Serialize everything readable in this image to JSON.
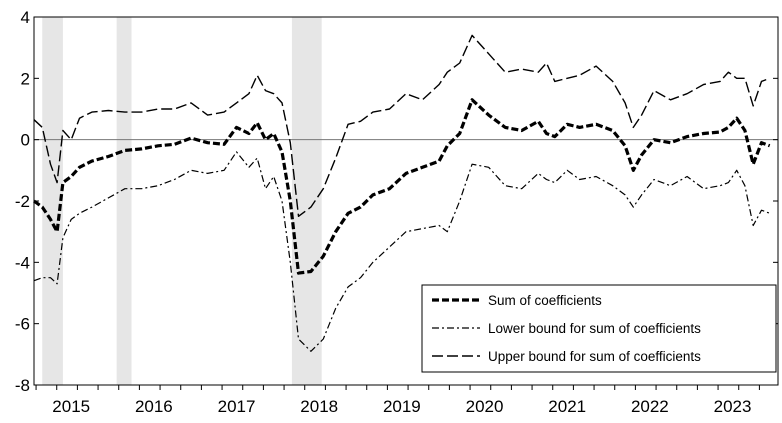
{
  "chart_data": {
    "type": "line",
    "title": "",
    "xlabel": "",
    "ylabel": "",
    "xlim": [
      2014.6,
      2023.6
    ],
    "ylim": [
      -8,
      4
    ],
    "y_ticks": [
      4,
      2,
      0,
      -2,
      -4,
      -6,
      -8
    ],
    "y_tick_labels": [
      "4",
      "2",
      "0",
      "-2",
      "-4",
      "-6",
      "-8"
    ],
    "x_tick_labels": [
      "2015",
      "2016",
      "2017",
      "2018",
      "2019",
      "2020",
      "2021",
      "2022",
      "2023"
    ],
    "x_tick_positions": [
      2015.05,
      2016.05,
      2017.05,
      2018.05,
      2019.05,
      2020.05,
      2021.05,
      2022.05,
      2023.05
    ],
    "grid": false,
    "zero_line": true,
    "legend_position": "bottom-right",
    "shaded_periods": [
      [
        2014.7,
        2014.95
      ],
      [
        2015.6,
        2015.78
      ],
      [
        2017.72,
        2018.08
      ]
    ],
    "series": [
      {
        "name": "Sum of coefficients",
        "style": "bold-dash",
        "points": [
          [
            2014.6,
            -2.0
          ],
          [
            2014.7,
            -2.2
          ],
          [
            2014.8,
            -2.6
          ],
          [
            2014.88,
            -3.0
          ],
          [
            2014.95,
            -1.4
          ],
          [
            2015.05,
            -1.2
          ],
          [
            2015.15,
            -0.9
          ],
          [
            2015.3,
            -0.7
          ],
          [
            2015.5,
            -0.55
          ],
          [
            2015.7,
            -0.35
          ],
          [
            2015.9,
            -0.3
          ],
          [
            2016.1,
            -0.2
          ],
          [
            2016.3,
            -0.15
          ],
          [
            2016.5,
            0.05
          ],
          [
            2016.7,
            -0.1
          ],
          [
            2016.9,
            -0.15
          ],
          [
            2017.05,
            0.4
          ],
          [
            2017.2,
            0.2
          ],
          [
            2017.3,
            0.55
          ],
          [
            2017.4,
            0.0
          ],
          [
            2017.5,
            0.2
          ],
          [
            2017.6,
            -0.4
          ],
          [
            2017.7,
            -2.0
          ],
          [
            2017.8,
            -4.35
          ],
          [
            2017.95,
            -4.3
          ],
          [
            2018.1,
            -3.8
          ],
          [
            2018.25,
            -3.0
          ],
          [
            2018.4,
            -2.4
          ],
          [
            2018.55,
            -2.2
          ],
          [
            2018.7,
            -1.8
          ],
          [
            2018.9,
            -1.6
          ],
          [
            2019.1,
            -1.1
          ],
          [
            2019.3,
            -0.9
          ],
          [
            2019.5,
            -0.7
          ],
          [
            2019.6,
            -0.2
          ],
          [
            2019.75,
            0.2
          ],
          [
            2019.9,
            1.3
          ],
          [
            2020.1,
            0.8
          ],
          [
            2020.3,
            0.4
          ],
          [
            2020.5,
            0.3
          ],
          [
            2020.7,
            0.6
          ],
          [
            2020.8,
            0.2
          ],
          [
            2020.9,
            0.1
          ],
          [
            2021.05,
            0.5
          ],
          [
            2021.2,
            0.4
          ],
          [
            2021.4,
            0.5
          ],
          [
            2021.6,
            0.3
          ],
          [
            2021.75,
            -0.2
          ],
          [
            2021.85,
            -1.0
          ],
          [
            2021.95,
            -0.5
          ],
          [
            2022.1,
            0.0
          ],
          [
            2022.3,
            -0.1
          ],
          [
            2022.5,
            0.1
          ],
          [
            2022.7,
            0.2
          ],
          [
            2022.9,
            0.25
          ],
          [
            2023.0,
            0.4
          ],
          [
            2023.1,
            0.7
          ],
          [
            2023.2,
            0.3
          ],
          [
            2023.3,
            -0.8
          ],
          [
            2023.4,
            -0.1
          ],
          [
            2023.5,
            -0.2
          ]
        ]
      },
      {
        "name": "Lower bound for sum of coefficients",
        "style": "dash-dot",
        "points": [
          [
            2014.6,
            -4.6
          ],
          [
            2014.7,
            -4.5
          ],
          [
            2014.8,
            -4.5
          ],
          [
            2014.88,
            -4.7
          ],
          [
            2014.95,
            -3.2
          ],
          [
            2015.05,
            -2.6
          ],
          [
            2015.15,
            -2.4
          ],
          [
            2015.3,
            -2.2
          ],
          [
            2015.5,
            -1.9
          ],
          [
            2015.7,
            -1.6
          ],
          [
            2015.9,
            -1.6
          ],
          [
            2016.1,
            -1.5
          ],
          [
            2016.3,
            -1.3
          ],
          [
            2016.5,
            -1.0
          ],
          [
            2016.7,
            -1.1
          ],
          [
            2016.9,
            -1.0
          ],
          [
            2017.05,
            -0.4
          ],
          [
            2017.2,
            -0.9
          ],
          [
            2017.3,
            -0.6
          ],
          [
            2017.4,
            -1.6
          ],
          [
            2017.5,
            -1.2
          ],
          [
            2017.6,
            -2.0
          ],
          [
            2017.7,
            -4.0
          ],
          [
            2017.8,
            -6.5
          ],
          [
            2017.95,
            -6.9
          ],
          [
            2018.1,
            -6.5
          ],
          [
            2018.25,
            -5.5
          ],
          [
            2018.4,
            -4.8
          ],
          [
            2018.55,
            -4.5
          ],
          [
            2018.7,
            -4.0
          ],
          [
            2018.9,
            -3.5
          ],
          [
            2019.1,
            -3.0
          ],
          [
            2019.3,
            -2.9
          ],
          [
            2019.5,
            -2.8
          ],
          [
            2019.6,
            -3.0
          ],
          [
            2019.75,
            -2.0
          ],
          [
            2019.9,
            -0.8
          ],
          [
            2020.1,
            -0.9
          ],
          [
            2020.3,
            -1.5
          ],
          [
            2020.5,
            -1.6
          ],
          [
            2020.7,
            -1.1
          ],
          [
            2020.8,
            -1.3
          ],
          [
            2020.9,
            -1.4
          ],
          [
            2021.05,
            -1.0
          ],
          [
            2021.2,
            -1.3
          ],
          [
            2021.4,
            -1.2
          ],
          [
            2021.6,
            -1.5
          ],
          [
            2021.75,
            -1.8
          ],
          [
            2021.85,
            -2.2
          ],
          [
            2021.95,
            -1.8
          ],
          [
            2022.1,
            -1.3
          ],
          [
            2022.3,
            -1.5
          ],
          [
            2022.5,
            -1.2
          ],
          [
            2022.7,
            -1.6
          ],
          [
            2022.9,
            -1.5
          ],
          [
            2023.0,
            -1.4
          ],
          [
            2023.1,
            -1.0
          ],
          [
            2023.2,
            -1.5
          ],
          [
            2023.3,
            -2.8
          ],
          [
            2023.4,
            -2.3
          ],
          [
            2023.5,
            -2.4
          ]
        ]
      },
      {
        "name": "Upper bound for sum of coefficients",
        "style": "long-dash",
        "points": [
          [
            2014.6,
            0.65
          ],
          [
            2014.7,
            0.4
          ],
          [
            2014.8,
            -0.8
          ],
          [
            2014.88,
            -1.4
          ],
          [
            2014.95,
            0.3
          ],
          [
            2015.05,
            0.0
          ],
          [
            2015.15,
            0.7
          ],
          [
            2015.3,
            0.9
          ],
          [
            2015.5,
            0.95
          ],
          [
            2015.7,
            0.9
          ],
          [
            2015.9,
            0.9
          ],
          [
            2016.1,
            1.0
          ],
          [
            2016.3,
            1.0
          ],
          [
            2016.5,
            1.2
          ],
          [
            2016.7,
            0.8
          ],
          [
            2016.9,
            0.9
          ],
          [
            2017.05,
            1.2
          ],
          [
            2017.2,
            1.5
          ],
          [
            2017.3,
            2.1
          ],
          [
            2017.4,
            1.6
          ],
          [
            2017.5,
            1.5
          ],
          [
            2017.6,
            1.2
          ],
          [
            2017.7,
            -0.1
          ],
          [
            2017.8,
            -2.5
          ],
          [
            2017.95,
            -2.2
          ],
          [
            2018.1,
            -1.6
          ],
          [
            2018.25,
            -0.6
          ],
          [
            2018.4,
            0.5
          ],
          [
            2018.55,
            0.6
          ],
          [
            2018.7,
            0.9
          ],
          [
            2018.9,
            1.0
          ],
          [
            2019.1,
            1.5
          ],
          [
            2019.3,
            1.3
          ],
          [
            2019.5,
            1.8
          ],
          [
            2019.6,
            2.2
          ],
          [
            2019.75,
            2.5
          ],
          [
            2019.9,
            3.4
          ],
          [
            2020.1,
            2.8
          ],
          [
            2020.3,
            2.2
          ],
          [
            2020.5,
            2.3
          ],
          [
            2020.7,
            2.2
          ],
          [
            2020.8,
            2.5
          ],
          [
            2020.9,
            1.9
          ],
          [
            2021.05,
            2.0
          ],
          [
            2021.2,
            2.1
          ],
          [
            2021.4,
            2.4
          ],
          [
            2021.6,
            1.9
          ],
          [
            2021.75,
            1.2
          ],
          [
            2021.85,
            0.4
          ],
          [
            2021.95,
            0.8
          ],
          [
            2022.1,
            1.6
          ],
          [
            2022.3,
            1.3
          ],
          [
            2022.5,
            1.5
          ],
          [
            2022.7,
            1.8
          ],
          [
            2022.9,
            1.9
          ],
          [
            2023.0,
            2.2
          ],
          [
            2023.1,
            2.0
          ],
          [
            2023.2,
            2.0
          ],
          [
            2023.3,
            1.1
          ],
          [
            2023.4,
            1.9
          ],
          [
            2023.5,
            2.0
          ]
        ]
      }
    ]
  }
}
